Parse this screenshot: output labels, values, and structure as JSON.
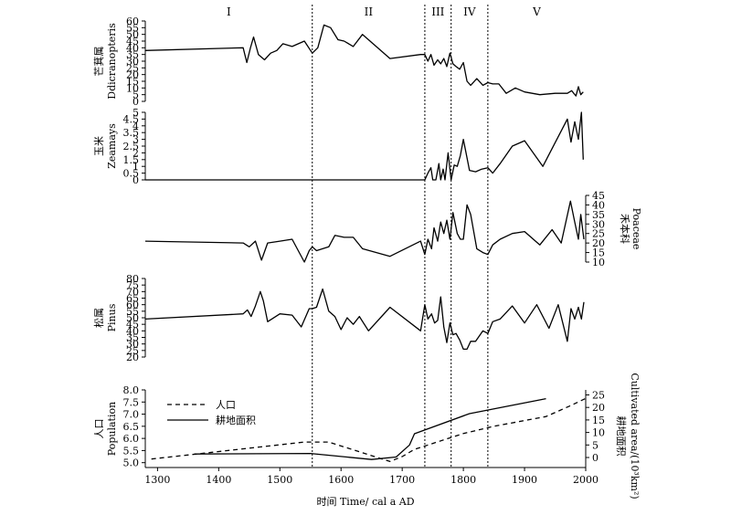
{
  "chart_data": {
    "type": "line",
    "x_axis": {
      "label": "时间 Time/ cal a AD",
      "range": [
        1280,
        2000
      ],
      "ticks": [
        1300,
        1400,
        1500,
        1600,
        1700,
        1800,
        1900,
        2000
      ]
    },
    "phases": {
      "labels": [
        "I",
        "II",
        "III",
        "IV",
        "V"
      ],
      "boundaries": [
        1553,
        1737,
        1780,
        1840
      ]
    },
    "panels": [
      {
        "id": "ddicranopteris",
        "ylabel_cn": "芒萁属",
        "ylabel_en": "Ddicranopteris",
        "ylim": [
          0,
          60
        ],
        "yticks": [
          0,
          5,
          10,
          15,
          20,
          25,
          30,
          35,
          40,
          45,
          50,
          55,
          60
        ],
        "series": [
          {
            "x": [
              1280,
              1440,
              1446,
              1452,
              1457,
              1465,
              1475,
              1485,
              1495,
              1505,
              1520,
              1540,
              1553,
              1562,
              1572,
              1583,
              1595,
              1605,
              1620,
              1635,
              1680,
              1730,
              1737,
              1742,
              1747,
              1752,
              1758,
              1763,
              1768,
              1773,
              1778,
              1783,
              1788,
              1794,
              1800,
              1806,
              1812,
              1822,
              1832,
              1840,
              1848,
              1858,
              1870,
              1885,
              1900,
              1925,
              1950,
              1970,
              1977,
              1984,
              1988,
              1992,
              1996
            ],
            "y": [
              38,
              40,
              29,
              40,
              48,
              35,
              31,
              36,
              38,
              43,
              41,
              45,
              36,
              40,
              57,
              55,
              46,
              45,
              41,
              50,
              32,
              35,
              35,
              30,
              35,
              27,
              31,
              28,
              32,
              26,
              36,
              28,
              26,
              24,
              29,
              15,
              12,
              17,
              12,
              14,
              13,
              13,
              6,
              10,
              7,
              5,
              6,
              6,
              8,
              4,
              11,
              5,
              7
            ]
          }
        ]
      },
      {
        "id": "zeamays",
        "ylabel_cn": "玉米",
        "ylabel_en": "Zeamays",
        "ylim": [
          0,
          5
        ],
        "yticks": [
          0,
          0.5,
          1,
          1.5,
          2,
          2.5,
          3,
          3.5,
          4,
          4.5,
          5
        ],
        "series": [
          {
            "x": [
              1280,
              1737,
              1742,
              1747,
              1750,
              1755,
              1760,
              1763,
              1767,
              1770,
              1775,
              1780,
              1785,
              1790,
              1795,
              1800,
              1810,
              1820,
              1830,
              1840,
              1848,
              1860,
              1880,
              1900,
              1930,
              1970,
              1976,
              1982,
              1988,
              1993,
              1996
            ],
            "y": [
              0,
              0,
              0.5,
              0.9,
              0,
              0,
              1.2,
              0,
              0.8,
              0,
              2,
              0,
              1.1,
              1,
              1.8,
              3,
              0.7,
              0.6,
              0.8,
              0.9,
              0.5,
              1.2,
              2.5,
              2.9,
              1,
              4.5,
              2.8,
              4.3,
              3,
              5,
              1.5
            ]
          }
        ]
      },
      {
        "id": "poaceae",
        "ylabel_cn": "禾本科",
        "ylabel_en": "Poaceae",
        "ylim": [
          10,
          45
        ],
        "yticks": [
          10,
          15,
          20,
          25,
          30,
          35,
          40,
          45
        ],
        "series": [
          {
            "x": [
              1280,
              1440,
              1450,
              1460,
              1470,
              1480,
              1500,
              1520,
              1540,
              1548,
              1553,
              1560,
              1580,
              1590,
              1605,
              1620,
              1635,
              1680,
              1730,
              1737,
              1742,
              1748,
              1752,
              1758,
              1763,
              1768,
              1773,
              1778,
              1783,
              1790,
              1795,
              1800,
              1806,
              1812,
              1822,
              1832,
              1840,
              1848,
              1860,
              1880,
              1900,
              1925,
              1945,
              1960,
              1975,
              1982,
              1988,
              1992,
              1997
            ],
            "y": [
              21,
              20,
              18,
              21,
              11,
              20,
              21,
              22,
              10,
              16,
              18,
              16,
              18,
              24,
              23,
              23,
              17,
              13,
              21,
              14,
              22,
              17,
              28,
              21,
              31,
              25,
              32,
              22,
              36,
              25,
              22,
              22,
              40,
              35,
              17,
              15,
              14,
              19,
              22,
              25,
              26,
              19,
              27,
              20,
              42,
              31,
              22,
              35,
              22
            ]
          }
        ]
      },
      {
        "id": "pinus",
        "ylabel_cn": "松属",
        "ylabel_en": "Pinus",
        "ylim": [
          20,
          80
        ],
        "yticks": [
          20,
          25,
          30,
          35,
          40,
          45,
          50,
          55,
          60,
          65,
          70,
          75,
          80
        ],
        "series": [
          {
            "x": [
              1280,
              1440,
              1447,
              1453,
              1460,
              1468,
              1473,
              1480,
              1500,
              1520,
              1535,
              1548,
              1553,
              1560,
              1570,
              1580,
              1590,
              1600,
              1610,
              1620,
              1630,
              1645,
              1680,
              1730,
              1737,
              1742,
              1748,
              1753,
              1758,
              1763,
              1768,
              1773,
              1778,
              1783,
              1788,
              1794,
              1800,
              1806,
              1812,
              1820,
              1832,
              1840,
              1848,
              1860,
              1880,
              1900,
              1920,
              1940,
              1955,
              1970,
              1976,
              1982,
              1988,
              1993,
              1997
            ],
            "y": [
              49,
              53,
              56,
              51,
              59,
              70,
              63,
              47,
              53,
              52,
              43,
              57,
              57,
              58,
              72,
              55,
              51,
              41,
              50,
              45,
              51,
              40,
              58,
              40,
              60,
              49,
              53,
              46,
              48,
              66,
              43,
              31,
              46,
              37,
              38,
              33,
              26,
              26,
              32,
              32,
              40,
              38,
              47,
              49,
              59,
              46,
              60,
              42,
              60,
              32,
              57,
              49,
              58,
              49,
              62
            ]
          }
        ]
      },
      {
        "id": "population_area",
        "ylabel_cn": "人口",
        "ylabel_en": "Population",
        "ylim": [
          4.8,
          8.0
        ],
        "yticks": [
          5.0,
          5.5,
          6.0,
          6.5,
          7.0,
          7.5,
          8.0
        ],
        "y2label_cn": "耕地面积",
        "y2label_en": "Cultivated area/(10³km²)",
        "y2lim": [
          -4,
          27
        ],
        "y2ticks": [
          0,
          5,
          10,
          15,
          20,
          25
        ],
        "series": [
          {
            "name": "人口",
            "axis": "left",
            "style": "dashed",
            "x": [
              1290,
              1540,
              1580,
              1680,
              1700,
              1720,
              1800,
              1850,
              1935,
              1975,
              2000
            ],
            "y": [
              5.15,
              5.85,
              5.85,
              5.05,
              5.25,
              5.55,
              6.2,
              6.5,
              6.9,
              7.35,
              7.65
            ]
          },
          {
            "name": "耕地面积",
            "axis": "right",
            "style": "solid",
            "x": [
              1360,
              1550,
              1650,
              1690,
              1712,
              1720,
              1810,
              1935
            ],
            "y": [
              1.4,
              1.6,
              -0.8,
              0.2,
              5,
              9.5,
              17.5,
              23.5
            ]
          }
        ]
      }
    ]
  }
}
